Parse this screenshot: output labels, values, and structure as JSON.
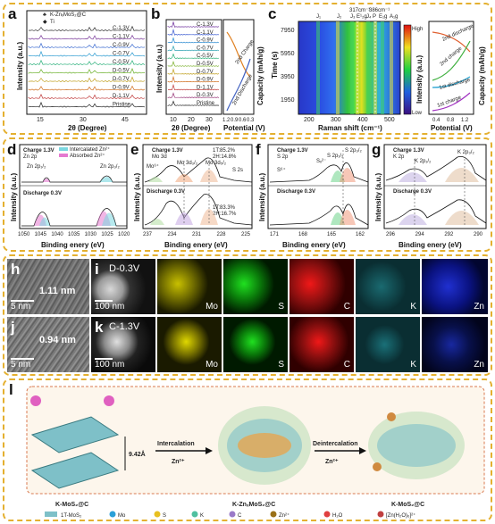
{
  "panels": {
    "a": {
      "label": "a",
      "legend_material": "K-ZnₓMoS₂@C",
      "legend_ti": "Ti",
      "xlabel": "2θ (Degree)",
      "ylabel": "Intensity (a.u.)",
      "curves": [
        "C-1.3V",
        "C-1.1V",
        "C-0.9V",
        "C-0.7V",
        "C-0.5V",
        "D-0.5V",
        "D-0.7V",
        "D-0.9V",
        "D-1.1V",
        "Pristine"
      ],
      "xticks": [
        "15",
        "30",
        "45"
      ]
    },
    "b": {
      "label": "b",
      "curves": [
        "C-1.3V",
        "C-1.1V",
        "C-0.9V",
        "C-0.7V",
        "C-0.5V",
        "D-0.5V",
        "D-0.7V",
        "D-0.9V",
        "D-1.1V",
        "D-0.3V",
        "Pristine"
      ],
      "xlabel": "2θ (Degree)",
      "ylabel": "Intensity (a.u.)",
      "xticks": [
        "10",
        "20",
        "30"
      ],
      "right_xlabel": "Potential (V)",
      "right_ylabel": "Capacity (mAh/g)",
      "right_xticks": [
        "1.2",
        "0.9",
        "0.6",
        "0.3"
      ],
      "charge": "2nd Charge",
      "discharge": "2nd Discharge"
    },
    "c": {
      "label": "c",
      "xlabel": "Raman shift (cm⁻¹)",
      "ylabel": "Time (s)",
      "yticks": [
        "7950",
        "5950",
        "3950",
        "1950"
      ],
      "xticks": [
        "200",
        "300",
        "400",
        "500"
      ],
      "annots": [
        "J₁",
        "J₂",
        "J₃",
        "317cm⁻¹",
        "E¹₂g",
        "J₄",
        "P",
        "386cm⁻¹",
        "E₁g",
        "A₁g"
      ],
      "colorbar_high": "High",
      "colorbar_low": "Low",
      "colorbar_label": "Intensity (a.u.)",
      "right_xlabel": "Potential (V)",
      "right_ylabel": "Capacity (mAh/g)",
      "right_xticks": [
        "0.4",
        "0.8",
        "1.2"
      ],
      "legend": [
        "2nd discharge",
        "2nd charge",
        "1st discharge",
        "1st charge"
      ]
    },
    "d": {
      "label": "d",
      "charge": "Charge 1.3V",
      "element": "Zn 2p",
      "discharge": "Discharge 0.3V",
      "legend1": "Intercalated Zn²⁺",
      "legend2": "Absorbed Zn²⁺",
      "peak1": "Zn 2p₁/₂",
      "peak2": "Zn 2p₃/₂",
      "xlabel": "Binding enery (eV)",
      "ylabel": "Intensity (a.u.)",
      "xticks": [
        "1050",
        "1045",
        "1040",
        "1035",
        "1030",
        "1025",
        "1020"
      ]
    },
    "e": {
      "label": "e",
      "charge": "Charge 1.3V",
      "element": "Mo 3d",
      "discharge": "Discharge 0.3V",
      "mo6": "Mo⁶⁺",
      "mo3d32": "Mo 3d₃/₂",
      "mo3d52": "Mo 3d₅/₂",
      "s2s": "S 2s",
      "t_charge_1": "1T:85.2%",
      "t_charge_2": "2H:14.8%",
      "t_dis_1": "1T:83.3%",
      "t_dis_2": "2H:16.7%",
      "xlabel": "Binding enery (eV)",
      "ylabel": "Intensity (a.u.)",
      "xticks": [
        "237",
        "234",
        "231",
        "228",
        "225"
      ]
    },
    "f": {
      "label": "f",
      "charge": "Charge 1.3V",
      "element": "S 2p",
      "discharge": "Discharge 0.3V",
      "s6": "S⁶⁺",
      "sx": "Sₓ²⁻",
      "s2p12": "S 2p₁/₂",
      "s2p32": "S 2p₃/₂",
      "xlabel": "Binding enery (eV)",
      "ylabel": "Intensity (a.u.)",
      "xticks": [
        "171",
        "168",
        "165",
        "162"
      ]
    },
    "g": {
      "label": "g",
      "charge": "Charge 1.3V",
      "element": "K 2p",
      "discharge": "Discharge 0.3V",
      "k2p12": "K 2p₁/₂",
      "k2p32": "K 2p₃/₂",
      "xlabel": "Binding enery (eV)",
      "ylabel": "Intensity (a.u.)",
      "xticks": [
        "296",
        "294",
        "292",
        "290"
      ]
    },
    "h": {
      "label": "h",
      "spacing": "1.11 nm",
      "scale": "5 nm"
    },
    "i": {
      "label": "i",
      "title": "D-0.3V",
      "scale": "100 nm",
      "maps": [
        "Mo",
        "S",
        "C",
        "K",
        "Zn"
      ]
    },
    "j": {
      "label": "j",
      "spacing": "0.94 nm",
      "scale": "5 nm"
    },
    "k": {
      "label": "k",
      "title": "C-1.3V",
      "scale": "100 nm",
      "maps": [
        "Mo",
        "S",
        "C",
        "K",
        "Zn"
      ]
    },
    "l": {
      "label": "l",
      "spacing": "9.42Å",
      "intercalation": "Intercalation",
      "deintercalation": "Deintercalation",
      "zn_in": "Zn²⁺",
      "zn_out": "Zn²⁺",
      "mat1": "K-MoS₂@C",
      "mat2": "K-ZnₓMoS₂@C",
      "mat3": "K-MoS₂@C",
      "legend": [
        "1T-MoS₂",
        "Mo",
        "S",
        "K",
        "C",
        "Zn²⁺",
        "H₂O",
        "[Zn(H₂O)₆]²⁺"
      ]
    }
  },
  "colors": {
    "frame": "#e4b030",
    "mo": "#d8d200",
    "s": "#16c016",
    "c": "#e00000",
    "k": "#20c0c0",
    "zn": "#1020e0"
  }
}
